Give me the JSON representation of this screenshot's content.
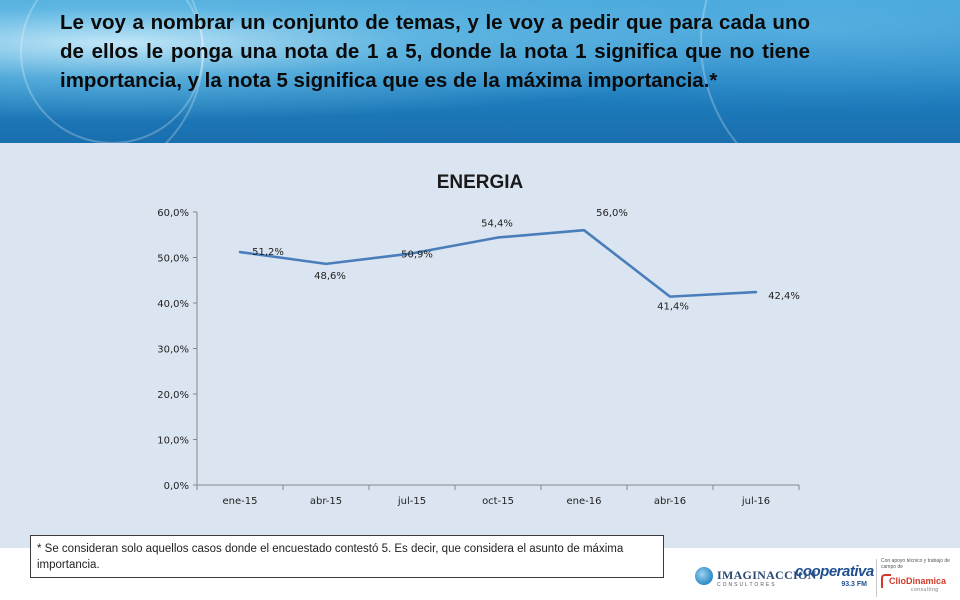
{
  "header": {
    "question": "Le voy a nombrar un conjunto de temas, y le voy a pedir que para cada uno de ellos le ponga una nota de 1 a 5, donde la nota 1 significa que no tiene importancia, y la nota 5 significa que es de la máxima importancia.*"
  },
  "chart_data": {
    "type": "line",
    "title": "ENERGIA",
    "xlabel": "",
    "ylabel": "",
    "categories": [
      "ene-15",
      "abr-15",
      "jul-15",
      "oct-15",
      "ene-16",
      "abr-16",
      "jul-16"
    ],
    "series": [
      {
        "values": [
          51.2,
          48.6,
          50.9,
          54.4,
          56.0,
          41.4,
          42.4
        ],
        "labels": [
          "51,2%",
          "48,6%",
          "50,9%",
          "54,4%",
          "56,0%",
          "41,4%",
          "42,4%"
        ],
        "color": "#4a7ebb"
      }
    ],
    "ylim": [
      0,
      60
    ],
    "yticks": [
      0,
      10,
      20,
      30,
      40,
      50,
      60
    ],
    "ytick_labels": [
      "0,0%",
      "10,0%",
      "20,0%",
      "30,0%",
      "40,0%",
      "50,0%",
      "60,0%"
    ],
    "grid": false,
    "legend": "none"
  },
  "footnote": "* Se consideran solo aquellos casos donde el encuestado contestó 5. Es decir, que considera el asunto de máxima importancia.",
  "logos": {
    "imaginacion": {
      "name": "IMAGINACCION",
      "sub": "CONSULTORES"
    },
    "cooperativa": {
      "name": "cooperativa",
      "freq": "93.3 FM"
    },
    "cliodinamica": {
      "top": "Con apoyo técnico y trabajo de campo de",
      "name": "ClioDinamica",
      "sub": "consulting"
    }
  },
  "colors": {
    "header_blue": "#1f7fc0",
    "panel_bg": "#dbe5f1",
    "line": "#4a7ebb"
  }
}
